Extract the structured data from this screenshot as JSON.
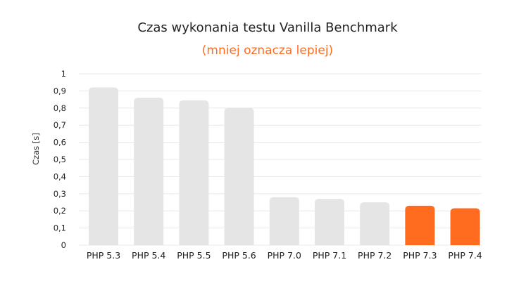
{
  "colors": {
    "default_bar": "#e6e5e6",
    "highlight_bar": "#ff6b1f",
    "subtitle": "#ff6b1f",
    "grid": "#e8e8e8"
  },
  "chart_data": {
    "type": "bar",
    "title": "Czas wykonania testu Vanilla Benchmark",
    "subtitle": "(mniej oznacza lepiej)",
    "xlabel": "",
    "ylabel": "Czas [s]",
    "ylim": [
      0,
      1
    ],
    "yticks": [
      "0",
      "0,1",
      "0,2",
      "0,3",
      "0,4",
      "0,5",
      "0,6",
      "0,7",
      "0,8",
      "0,9",
      "1"
    ],
    "grid": true,
    "legend": "none",
    "categories": [
      "PHP 5.3",
      "PHP 5.4",
      "PHP 5.5",
      "PHP 5.6",
      "PHP 7.0",
      "PHP 7.1",
      "PHP 7.2",
      "PHP 7.3",
      "PHP 7.4"
    ],
    "values": [
      0.92,
      0.86,
      0.845,
      0.8,
      0.28,
      0.27,
      0.25,
      0.23,
      0.215
    ],
    "highlighted": [
      "PHP 7.3",
      "PHP 7.4"
    ]
  }
}
